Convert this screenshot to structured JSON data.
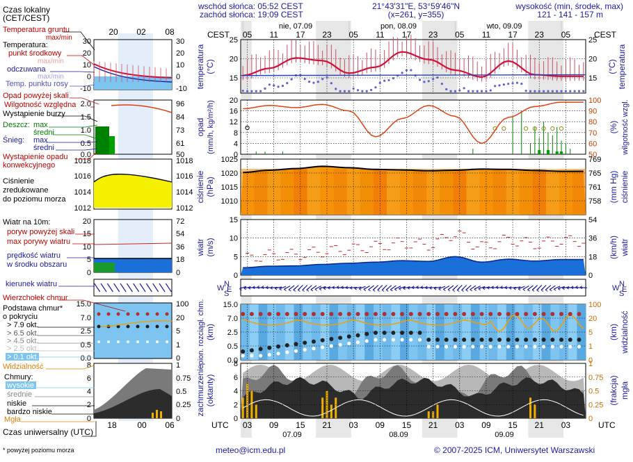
{
  "header": {
    "sunrise": "wschód słońca: 05:52 CEST",
    "sunset": "zachód słońca: 19:09 CEST",
    "coords": "21°43'31\"E, 53°59'46\"N",
    "grid": "(x=261, y=355)",
    "elevation_title": "wysokość (min, środek, max)",
    "elevation_values": "121 - 141 - 157 m"
  },
  "footer": {
    "email": "meteo@icm.edu.pl",
    "copyright": "© 2007-2025 ICM, Uniwersytet Warszawski",
    "note": "* powyżej poziomu morza"
  },
  "timeaxis": {
    "cest_label": "CEST",
    "utc_label": "UTC",
    "top_hours": [
      "05",
      "11",
      "17",
      "23",
      "05",
      "11",
      "17",
      "23",
      "05",
      "11",
      "17",
      "23",
      "05"
    ],
    "bottom_hours": [
      "03",
      "09",
      "15",
      "21",
      "03",
      "09",
      "15",
      "21",
      "03",
      "09",
      "15",
      "21",
      "03"
    ],
    "days_top": [
      "nie, 07.09",
      "pon, 08.09",
      "wto, 09.09"
    ],
    "days_bottom": [
      "07.09",
      "08.09",
      "09.09"
    ],
    "mini_top_hours": [
      "20",
      "02",
      "08"
    ],
    "mini_bottom_hours": [
      "18",
      "00",
      "06"
    ],
    "mini_top_title": "Czas lokalny\n(CET/CEST)",
    "mini_bottom_title": "Czas uniwersalny (UTC)"
  },
  "legend": {
    "temp": {
      "soil": "Temperatura gruntu",
      "soil_sub": "max/min",
      "title": "Temperatura:",
      "mid": "punkt środkowy",
      "maxmin": "max/min",
      "feels": "odczuwana",
      "feels_maxmin": "max/min",
      "dew": "Temp. punktu rosy"
    },
    "precip": {
      "above": "Opad powyżej skali",
      "humidity": "Wilgotność względna",
      "storm": "Wystąpienie burzy",
      "rain": "Deszcz:",
      "rain_max": "max",
      "rain_mid": "średni",
      "snow": "Śnieg:",
      "snow_max": "max",
      "snow_mid": "średni",
      "occurrence": "Wystąpienie opadu",
      "occurrence2": "konwekcyjnego"
    },
    "pressure": [
      "Ciśnienie",
      "zredukowane",
      "do poziomu morza"
    ],
    "wind": {
      "title": "Wiatr na 10m:",
      "gust_above": "poryw powyżej skali",
      "gust_max": "max porywy wiatru",
      "speed": "prędkość wiatru",
      "speed2": "w środku obszaru"
    },
    "direction": "kierunek wiatru",
    "clouds_top": "Wierzchołek chmur",
    "cloud_base": {
      "title": "Podstawa chmur*",
      "title2": "o pokryciu",
      "l79": "> 7.9 okt.",
      "l65": "> 6.5 okt.",
      "l45": "> 4.5 okt.",
      "l25": "> 2.5 okt.",
      "l01": "> 0.1 okt.",
      "visibility": "Widzialność"
    },
    "clouds": {
      "title": "Chmury:",
      "high": "wysokie",
      "mid": "średnie",
      "low": "niskie",
      "vlow": "bardzo niskie",
      "fog": "Mgła"
    }
  },
  "axes": {
    "temp": {
      "left": [
        "25",
        "20",
        "15"
      ],
      "right": [
        "25",
        "20",
        "15"
      ],
      "label_l": "temperatura",
      "unit_l": "(°C)",
      "label_r": "temperatura",
      "unit_r": "(°C)"
    },
    "precip": {
      "left": [
        "20",
        "16",
        "12",
        "8",
        "4",
        "0"
      ],
      "right": [
        "100",
        "90",
        "80",
        "70",
        "60",
        "50"
      ],
      "label_l": "opad",
      "unit_l": "(mm/h, kg/m²/h)",
      "label_r": "wilgotność wzgl.",
      "unit_r": "(%)"
    },
    "pressure": {
      "left": [
        "1025",
        "1020",
        "1015",
        "1010"
      ],
      "right": [
        "769",
        "765",
        "761",
        "758"
      ],
      "label_l": "ciśnienie",
      "unit_l": "(hPa)",
      "label_r": "ciśnienie",
      "unit_r": "(mm Hg)"
    },
    "wind": {
      "left": [
        "15",
        "10",
        "5",
        "0"
      ],
      "right": [
        "54",
        "36",
        "18",
        "0"
      ],
      "label_l": "wiatr",
      "unit_l": "(m/s)",
      "label_r": "wiatr",
      "unit_r": "(km/h)"
    },
    "cloudbase": {
      "left": [
        "15.0",
        "7.0",
        "2.5",
        "0.5",
        "0.0"
      ],
      "right": [
        "100",
        "20",
        "5",
        "1",
        "0"
      ],
      "label_l": "pion. rozciągł. chm.",
      "unit_l": "(km)",
      "label_r": "widzialność",
      "unit_r": "(km)"
    },
    "clouds": {
      "left": [
        "8",
        "6",
        "4",
        "2",
        "0"
      ],
      "right": [
        "1",
        "0.75",
        "0.5",
        "0.25",
        "0"
      ],
      "label_l": "zachmurzenie",
      "unit_l": "(oktanty)",
      "label_r": "mgła",
      "unit_r": "(frakcja)"
    },
    "compass": [
      "N",
      "W",
      "E",
      "S"
    ],
    "mini_temp": {
      "left": [
        "30",
        "20",
        "10",
        "0",
        "-10"
      ],
      "right": [
        "30",
        "20",
        "10",
        "0",
        "-10"
      ]
    },
    "mini_precip": {
      "left": [
        "2.0",
        "1.5",
        "1.0",
        "0.5",
        "0.0"
      ],
      "right": [
        "96",
        "84",
        "73",
        "61",
        "50"
      ]
    },
    "mini_pressure": {
      "left": [
        "1018",
        "1016",
        "1014",
        "1012"
      ],
      "right": [
        "1018",
        "1016",
        "1014",
        "1012"
      ]
    },
    "mini_wind": {
      "left": [
        "20",
        "15",
        "10",
        "5",
        "0"
      ],
      "right": [
        "72",
        "54",
        "36",
        "18",
        "0"
      ]
    },
    "mini_cloudbase": {
      "left": [
        "15.0",
        "7.0",
        "2.5",
        "0.5",
        "0.0"
      ],
      "right": [
        "100",
        "20",
        "5",
        "1",
        "0"
      ]
    },
    "mini_clouds": {
      "left": [
        "8",
        "6",
        "4",
        "2",
        "0"
      ],
      "right": [
        "1",
        "0.75",
        "0.5",
        "0.25",
        "0"
      ]
    }
  },
  "colors": {
    "temp_line": "#d0103a",
    "dew": "#6060d0",
    "humidity": "#e04010",
    "pressure_fill": "#f08a00",
    "pressure_line": "#000000",
    "wind_fill": "#1a6fd8",
    "gust": "#d02020",
    "cloud_dark": "#303030",
    "fog": "#f0b000"
  },
  "chart_data": [
    {
      "type": "line",
      "title": "temperatura",
      "ylabel": "(°C)",
      "ylim": [
        11,
        25
      ],
      "x_hours_utc": [
        0,
        6,
        12,
        18,
        24,
        30,
        36,
        42,
        48,
        54,
        60,
        66,
        72
      ],
      "series": [
        {
          "values": [
            15.6,
            17.5,
            20.2,
            19.5,
            16.2,
            17.8,
            21.8,
            19.8,
            17.0,
            15.2,
            19.4,
            15.8,
            15.4
          ]
        }
      ]
    },
    {
      "type": "line",
      "title": "wilgotność wzgl.",
      "ylabel": "(%)",
      "ylim": [
        50,
        100
      ],
      "x_hours_utc": [
        0,
        6,
        12,
        18,
        24,
        30,
        36,
        42,
        48,
        54,
        60,
        66,
        72
      ],
      "series": [
        {
          "values": [
            92,
            95,
            93,
            96,
            90,
            66,
            83,
            95,
            85,
            60,
            84,
            94,
            98
          ]
        }
      ]
    },
    {
      "type": "area",
      "title": "ciśnienie",
      "ylabel": "(hPa)",
      "ylim": [
        1005,
        1025
      ],
      "x_hours_utc": [
        0,
        6,
        12,
        18,
        24,
        30,
        36,
        42,
        48,
        54,
        60,
        66,
        72
      ],
      "series": [
        {
          "values": [
            1020.2,
            1021.0,
            1021.6,
            1022.4,
            1021.9,
            1021.3,
            1021.1,
            1020.8,
            1021.0,
            1021.4,
            1021.3,
            1020.9,
            1020.6
          ]
        }
      ]
    },
    {
      "type": "area",
      "title": "wiatr",
      "ylabel": "(m/s)",
      "ylim": [
        0,
        15
      ],
      "x_hours_utc": [
        0,
        6,
        12,
        18,
        24,
        30,
        36,
        42,
        48,
        54,
        60,
        66,
        72
      ],
      "series": [
        {
          "values": [
            2.0,
            2.4,
            2.5,
            2.9,
            3.2,
            3.5,
            3.9,
            3.7,
            5.0,
            3.5,
            4.3,
            3.8,
            4.2
          ]
        }
      ]
    }
  ]
}
